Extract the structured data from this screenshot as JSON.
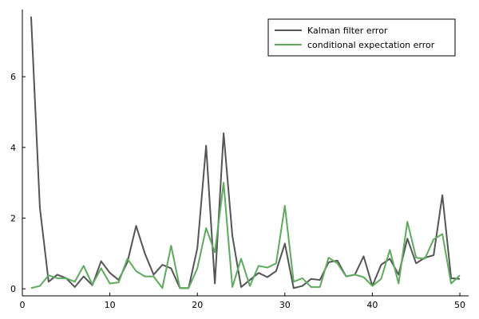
{
  "chart_data": {
    "type": "line",
    "title": "",
    "xlabel": "",
    "ylabel": "",
    "xlim": [
      0,
      51
    ],
    "ylim": [
      -0.2,
      7.9
    ],
    "x_ticks": [
      0,
      10,
      20,
      30,
      40,
      50
    ],
    "y_ticks": [
      0,
      2,
      4,
      6
    ],
    "grid": false,
    "legend_position": "top-right",
    "x": [
      1,
      2,
      3,
      4,
      5,
      6,
      7,
      8,
      9,
      10,
      11,
      12,
      13,
      14,
      15,
      16,
      17,
      18,
      19,
      20,
      21,
      22,
      23,
      24,
      25,
      26,
      27,
      28,
      29,
      30,
      31,
      32,
      33,
      34,
      35,
      36,
      37,
      38,
      39,
      40,
      41,
      42,
      43,
      44,
      45,
      46,
      47,
      48,
      49,
      50
    ],
    "series": [
      {
        "name": "Kalman filter error",
        "color": "#555555",
        "values": [
          7.7,
          2.3,
          0.2,
          0.4,
          0.3,
          0.05,
          0.35,
          0.1,
          0.78,
          0.45,
          0.25,
          0.75,
          1.78,
          1.0,
          0.4,
          0.68,
          0.58,
          0.02,
          0.02,
          1.15,
          4.05,
          0.15,
          4.4,
          1.5,
          0.05,
          0.25,
          0.45,
          0.33,
          0.5,
          1.28,
          0.02,
          0.08,
          0.28,
          0.25,
          0.75,
          0.8,
          0.35,
          0.4,
          0.92,
          0.08,
          0.68,
          0.85,
          0.4,
          1.42,
          0.72,
          0.88,
          0.95,
          2.65,
          0.3,
          0.28
        ]
      },
      {
        "name": "conditional expectation error",
        "color": "#5bac5b",
        "values": [
          0.02,
          0.08,
          0.38,
          0.3,
          0.3,
          0.2,
          0.65,
          0.12,
          0.58,
          0.15,
          0.18,
          0.85,
          0.5,
          0.35,
          0.35,
          0.02,
          1.22,
          0.02,
          0.02,
          0.58,
          1.72,
          1.03,
          3.0,
          0.05,
          0.85,
          0.08,
          0.65,
          0.6,
          0.72,
          2.35,
          0.2,
          0.3,
          0.05,
          0.05,
          0.88,
          0.72,
          0.35,
          0.4,
          0.33,
          0.08,
          0.28,
          1.1,
          0.15,
          1.9,
          0.88,
          0.85,
          1.4,
          1.55,
          0.15,
          0.38
        ]
      }
    ]
  }
}
